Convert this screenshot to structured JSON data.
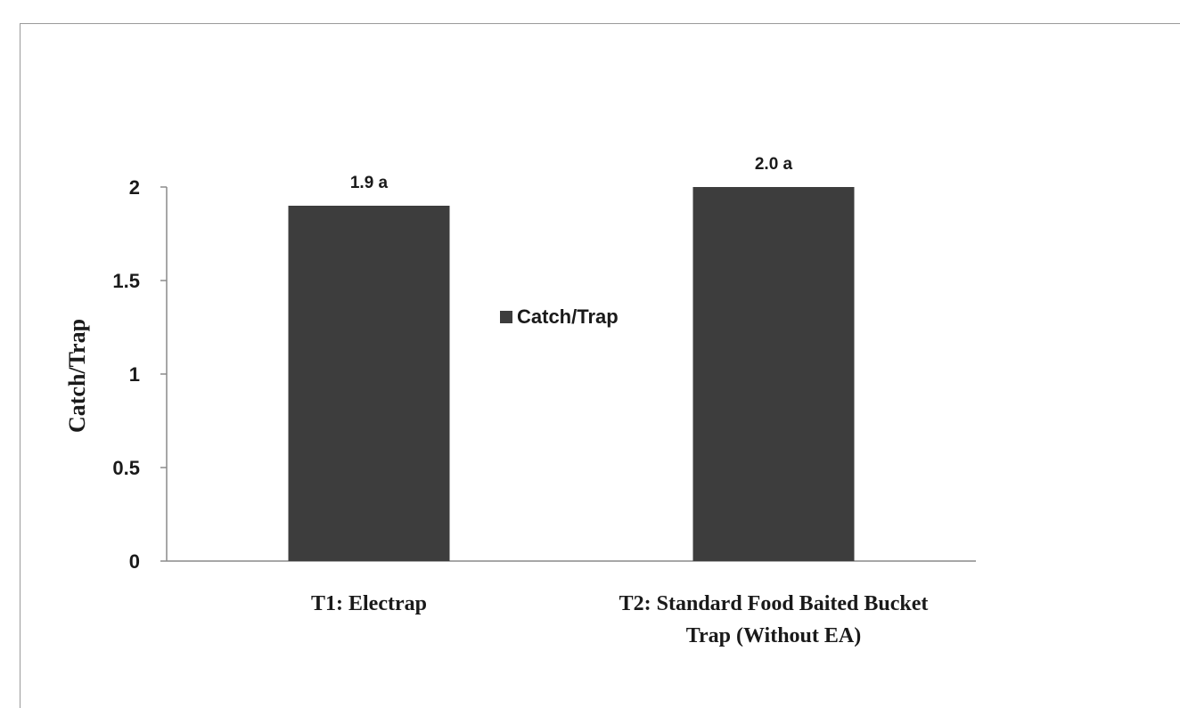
{
  "chart_data": {
    "type": "bar",
    "categories": [
      [
        "T1: Electrap"
      ],
      [
        "T2: Standard Food Baited Bucket",
        "Trap (Without EA)"
      ]
    ],
    "series": [
      {
        "name": "Catch/Trap",
        "values": [
          1.9,
          2.0
        ],
        "data_labels": [
          "1.9 a",
          "2.0 a"
        ],
        "color": "#3d3d3d"
      }
    ],
    "xlabel": "",
    "ylabel": "Catch/Trap",
    "ylim": [
      0,
      2
    ],
    "yticks": [
      0,
      0.5,
      1,
      1.5,
      2
    ],
    "ytick_labels": [
      "0",
      "0.5",
      "1",
      "1.5",
      "2"
    ],
    "grid": false,
    "legend": {
      "position": "center",
      "entries": [
        "Catch/Trap"
      ]
    }
  }
}
